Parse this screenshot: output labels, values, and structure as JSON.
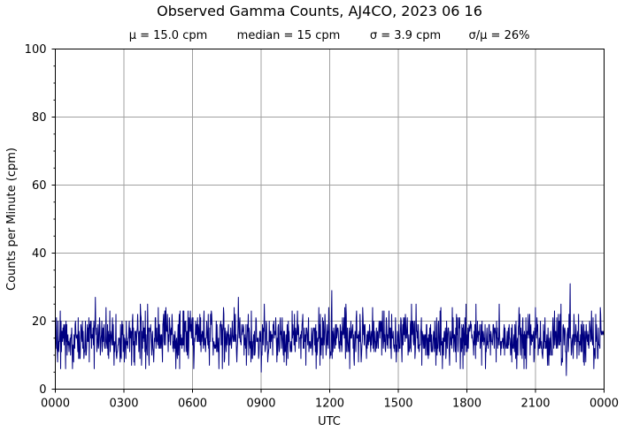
{
  "chart_data": {
    "type": "line",
    "title": "Observed Gamma Counts, AJ4CO, 2023 06 16",
    "subtitle": {
      "mean": "μ = 15.0 cpm",
      "median": "median = 15 cpm",
      "sigma": "σ = 3.9 cpm",
      "ratio": "σ/μ = 26%"
    },
    "xlabel": "UTC",
    "ylabel": "Counts per Minute (cpm)",
    "ylim": [
      0,
      100
    ],
    "xlim_hours": [
      0,
      24
    ],
    "x_ticks": [
      "0000",
      "0300",
      "0600",
      "0900",
      "1200",
      "1500",
      "1800",
      "2100",
      "0000"
    ],
    "y_ticks": [
      "0",
      "20",
      "40",
      "60",
      "80",
      "100"
    ],
    "grid": true,
    "series": [
      {
        "color": "#000080",
        "sampling": "one value per minute, 1440 points",
        "mean": 15.0,
        "median": 15,
        "std": 3.9,
        "min": 4,
        "max": 31,
        "peaks": [
          {
            "time": "0145",
            "value": 27
          },
          {
            "time": "0800",
            "value": 27
          },
          {
            "time": "1205",
            "value": 29
          },
          {
            "time": "2230",
            "value": 31
          }
        ],
        "troughs": [
          {
            "time": "0900",
            "value": 5
          },
          {
            "time": "2220",
            "value": 4
          }
        ]
      }
    ]
  }
}
